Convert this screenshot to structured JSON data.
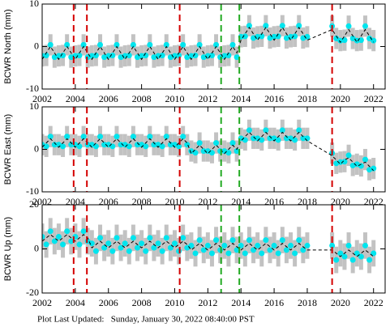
{
  "chart_data": [
    {
      "type": "scatter",
      "ylabel": "BCWR North (mm)",
      "x": [
        2002,
        2002.25,
        2002.5,
        2002.75,
        2003,
        2003.25,
        2003.5,
        2003.75,
        2004,
        2004.25,
        2004.5,
        2004.75,
        2005,
        2005.25,
        2005.5,
        2005.75,
        2006,
        2006.25,
        2006.5,
        2006.75,
        2007,
        2007.25,
        2007.5,
        2007.75,
        2008,
        2008.25,
        2008.5,
        2008.75,
        2009,
        2009.25,
        2009.5,
        2009.75,
        2010,
        2010.25,
        2010.5,
        2010.75,
        2011,
        2011.25,
        2011.5,
        2011.75,
        2012,
        2012.25,
        2012.5,
        2012.75,
        2013,
        2013.25,
        2013.5,
        2013.75,
        2014,
        2014.25,
        2014.5,
        2014.75,
        2015,
        2015.25,
        2015.5,
        2015.75,
        2016,
        2016.25,
        2016.5,
        2016.75,
        2017,
        2017.25,
        2017.5,
        2017.75,
        2018,
        2019.5,
        2019.75,
        2020,
        2020.25,
        2020.5,
        2020.75,
        2021,
        2021.25,
        2021.5,
        2021.75,
        2022
      ],
      "data": {
        "color": "#00e5ee",
        "error_color": "#b4b4b4",
        "error": 2.5,
        "values": [
          -2.2,
          -2.1,
          0.4,
          -2.5,
          -2.2,
          -2.1,
          0.4,
          -2.5,
          -2.2,
          -2.1,
          0.4,
          -2.5,
          -2.2,
          -2.1,
          0.4,
          -2.5,
          -2.2,
          -2.1,
          0.4,
          -2.5,
          -2.2,
          -2.1,
          0.4,
          -2.5,
          -2.2,
          -2.1,
          0.4,
          -2.5,
          -2.2,
          -2.1,
          0.4,
          -2.5,
          -2.2,
          -2.1,
          0.4,
          -2.5,
          -2.2,
          -2.1,
          0.4,
          -2.5,
          -2.2,
          -2.1,
          0.4,
          -2.5,
          -2.2,
          -2.1,
          0.4,
          -2.5,
          2.3,
          2.4,
          4.9,
          2.0,
          2.3,
          2.4,
          4.9,
          2.0,
          2.3,
          2.4,
          4.9,
          2.0,
          2.3,
          2.4,
          4.9,
          2.0,
          2.3,
          4.8,
          1.9,
          1.4,
          1.5,
          4.8,
          1.9,
          1.4,
          1.5,
          4.8,
          1.9,
          1.4
        ]
      },
      "model": {
        "color": "#000000",
        "values": [
          -3,
          -1.5,
          0,
          -1.5,
          -3,
          -1.5,
          0,
          -1.5,
          -3,
          -1.5,
          0,
          -1.5,
          -3,
          -1.5,
          0,
          -1.5,
          -3,
          -1.5,
          0,
          -1.5,
          -3,
          -1.5,
          0,
          -1.5,
          -3,
          -1.5,
          0,
          -1.5,
          -3,
          -1.5,
          0,
          -1.5,
          -3,
          -1.5,
          0,
          -1.5,
          -3,
          -1.5,
          0,
          -1.5,
          -3,
          -1.5,
          0,
          -1.5,
          -3,
          -1.5,
          0,
          -1.5,
          1.5,
          3,
          4.5,
          3,
          1.5,
          3,
          4.5,
          3,
          1.5,
          3,
          4.5,
          3,
          1.5,
          3,
          4.5,
          3,
          1.5,
          4,
          2.5,
          1,
          2.5,
          4,
          2.5,
          1,
          2.5,
          4,
          2.5,
          1
        ]
      },
      "events": [
        {
          "x": 2003.9,
          "color": "#d40000"
        },
        {
          "x": 2004.7,
          "color": "#d40000"
        },
        {
          "x": 2010.3,
          "color": "#d40000"
        },
        {
          "x": 2012.8,
          "color": "#22aa22"
        },
        {
          "x": 2013.9,
          "color": "#22aa22"
        },
        {
          "x": 2019.5,
          "color": "#d40000"
        }
      ],
      "xlim": [
        2002,
        2022.7
      ],
      "xticks": [
        2002,
        2004,
        2006,
        2008,
        2010,
        2012,
        2014,
        2016,
        2018,
        2020,
        2022
      ],
      "ylim": [
        -10,
        10
      ],
      "yticks": [
        -10,
        0,
        10
      ]
    },
    {
      "type": "scatter",
      "ylabel": "BCWR East (mm)",
      "x": [
        2002,
        2002.25,
        2002.5,
        2002.75,
        2003,
        2003.25,
        2003.5,
        2003.75,
        2004,
        2004.25,
        2004.5,
        2004.75,
        2005,
        2005.25,
        2005.5,
        2005.75,
        2006,
        2006.25,
        2006.5,
        2006.75,
        2007,
        2007.25,
        2007.5,
        2007.75,
        2008,
        2008.25,
        2008.5,
        2008.75,
        2009,
        2009.25,
        2009.5,
        2009.75,
        2010,
        2010.25,
        2010.5,
        2010.75,
        2011,
        2011.25,
        2011.5,
        2011.75,
        2012,
        2012.25,
        2012.5,
        2012.75,
        2013,
        2013.25,
        2013.5,
        2013.75,
        2014,
        2014.25,
        2014.5,
        2014.75,
        2015,
        2015.25,
        2015.5,
        2015.75,
        2016,
        2016.25,
        2016.5,
        2016.75,
        2017,
        2017.25,
        2017.5,
        2017.75,
        2018,
        2019.5,
        2019.75,
        2020,
        2020.25,
        2020.5,
        2020.75,
        2021,
        2021.25,
        2021.5,
        2021.75,
        2022
      ],
      "data": {
        "color": "#00e5ee",
        "error_color": "#b4b4b4",
        "error": 2.5,
        "values": [
          1.1,
          0.7,
          3.0,
          1.1,
          1.1,
          0.7,
          3.0,
          1.1,
          1.1,
          0.7,
          3.0,
          1.1,
          1.1,
          0.7,
          3.0,
          1.1,
          1.1,
          0.7,
          3.0,
          1.1,
          1.1,
          0.7,
          3.0,
          1.1,
          1.1,
          0.7,
          3.0,
          1.1,
          1.1,
          0.7,
          3.0,
          1.1,
          1.1,
          0.7,
          3.0,
          1.1,
          -0.4,
          -0.8,
          1.5,
          -0.4,
          -0.4,
          -0.8,
          1.5,
          -0.4,
          -0.4,
          -0.8,
          1.5,
          -0.4,
          2.6,
          2.2,
          4.5,
          2.6,
          2.6,
          2.2,
          4.5,
          2.6,
          2.6,
          2.2,
          4.5,
          2.6,
          2.6,
          2.2,
          4.5,
          2.6,
          2.6,
          -0.9,
          -3.3,
          -3.0,
          -2.9,
          -1.4,
          -3.8,
          -3.5,
          -3.9,
          -2.4,
          -4.8,
          -4.5
        ]
      },
      "model": {
        "color": "#000000",
        "values": [
          0.5,
          1.5,
          2.5,
          1.5,
          0.5,
          1.5,
          2.5,
          1.5,
          0.5,
          1.5,
          2.5,
          1.5,
          0.5,
          1.5,
          2.5,
          1.5,
          0.5,
          1.5,
          2.5,
          1.5,
          0.5,
          1.5,
          2.5,
          1.5,
          0.5,
          1.5,
          2.5,
          1.5,
          0.5,
          1.5,
          2.5,
          1.5,
          0.5,
          1.5,
          2.5,
          1.5,
          -1,
          0,
          1,
          0,
          -1,
          0,
          1,
          0,
          -1,
          0,
          1,
          0,
          2,
          3,
          4,
          3,
          2,
          3,
          4,
          3,
          2,
          3,
          4,
          3,
          2,
          3,
          4,
          3,
          2,
          -1.5,
          -2.5,
          -3.5,
          -2.5,
          -2,
          -3,
          -4,
          -3.5,
          -3,
          -4,
          -5
        ]
      },
      "events": [
        {
          "x": 2003.9,
          "color": "#d40000"
        },
        {
          "x": 2004.7,
          "color": "#d40000"
        },
        {
          "x": 2010.3,
          "color": "#d40000"
        },
        {
          "x": 2012.8,
          "color": "#22aa22"
        },
        {
          "x": 2013.9,
          "color": "#22aa22"
        },
        {
          "x": 2019.5,
          "color": "#d40000"
        }
      ],
      "xlim": [
        2002,
        2022.7
      ],
      "xticks": [
        2002,
        2004,
        2006,
        2008,
        2010,
        2012,
        2014,
        2016,
        2018,
        2020,
        2022
      ],
      "ylim": [
        -10,
        10
      ],
      "yticks": [
        -10,
        0,
        10
      ]
    },
    {
      "type": "scatter",
      "ylabel": "BCWR Up (mm)",
      "x": [
        2002,
        2002.25,
        2002.5,
        2002.75,
        2003,
        2003.25,
        2003.5,
        2003.75,
        2004,
        2004.25,
        2004.5,
        2004.75,
        2005,
        2005.25,
        2005.5,
        2005.75,
        2006,
        2006.25,
        2006.5,
        2006.75,
        2007,
        2007.25,
        2007.5,
        2007.75,
        2008,
        2008.25,
        2008.5,
        2008.75,
        2009,
        2009.25,
        2009.5,
        2009.75,
        2010,
        2010.25,
        2010.5,
        2010.75,
        2011,
        2011.25,
        2011.5,
        2011.75,
        2012,
        2012.25,
        2012.5,
        2012.75,
        2013,
        2013.25,
        2013.5,
        2013.75,
        2014,
        2014.25,
        2014.5,
        2014.75,
        2015,
        2015.25,
        2015.5,
        2015.75,
        2016,
        2016.25,
        2016.5,
        2016.75,
        2017,
        2017.25,
        2017.5,
        2017.75,
        2018,
        2019.5,
        2019.75,
        2020,
        2020.25,
        2020.5,
        2020.75,
        2021,
        2021.25,
        2021.5,
        2021.75,
        2022
      ],
      "data": {
        "color": "#00e5ee",
        "error_color": "#b4b4b4",
        "error": 6,
        "values": [
          5.5,
          2,
          8,
          3.5,
          5.5,
          2,
          8,
          3.5,
          5.5,
          2,
          8,
          3.5,
          2.5,
          -1,
          5,
          0.5,
          2.5,
          -1,
          5,
          0.5,
          2.5,
          -1,
          5,
          0.5,
          2.5,
          -1,
          5,
          0.5,
          2.5,
          -1,
          5,
          0.5,
          2.5,
          -1,
          5,
          0.5,
          1.5,
          -2,
          4,
          -0.5,
          1.5,
          -2,
          4,
          -0.5,
          1.5,
          -2,
          4,
          -0.5,
          1.5,
          -2,
          4,
          -0.5,
          1.5,
          -2,
          4,
          -0.5,
          1.5,
          -2,
          4,
          -0.5,
          1.5,
          -2,
          4,
          -0.5,
          1.5,
          1.5,
          -5,
          -2,
          -3.5,
          1.5,
          -5,
          -2,
          -3.5,
          1.5,
          -5,
          -2
        ]
      },
      "model": {
        "color": "#000000",
        "values": [
          3.5,
          5,
          6.5,
          5,
          3.5,
          5,
          6.5,
          5,
          3.5,
          5,
          6.5,
          5,
          0.5,
          2,
          3.5,
          2,
          0.5,
          2,
          3.5,
          2,
          0.5,
          2,
          3.5,
          2,
          0.5,
          2,
          3.5,
          2,
          0.5,
          2,
          3.5,
          2,
          0.5,
          2,
          3.5,
          2,
          -0.5,
          1,
          2.5,
          1,
          -0.5,
          1,
          2.5,
          1,
          -0.5,
          1,
          2.5,
          1,
          -0.5,
          1,
          2.5,
          1,
          -0.5,
          1,
          2.5,
          1,
          -0.5,
          1,
          2.5,
          1,
          -0.5,
          1,
          2.5,
          1,
          -0.5,
          -0.5,
          -2,
          -3.5,
          -2,
          -0.5,
          -2,
          -3.5,
          -2,
          -0.5,
          -2,
          -3.5
        ]
      },
      "events": [
        {
          "x": 2003.9,
          "color": "#d40000"
        },
        {
          "x": 2004.7,
          "color": "#d40000"
        },
        {
          "x": 2010.3,
          "color": "#d40000"
        },
        {
          "x": 2012.8,
          "color": "#22aa22"
        },
        {
          "x": 2013.9,
          "color": "#22aa22"
        },
        {
          "x": 2019.5,
          "color": "#d40000"
        }
      ],
      "xlim": [
        2002,
        2022.7
      ],
      "xticks": [
        2002,
        2004,
        2006,
        2008,
        2010,
        2012,
        2014,
        2016,
        2018,
        2020,
        2022
      ],
      "ylim": [
        -20,
        20
      ],
      "yticks": [
        -20,
        0,
        20
      ]
    }
  ],
  "footer": "Plot Last Updated:   Sunday, January 30, 2022 08:40:00 PST"
}
